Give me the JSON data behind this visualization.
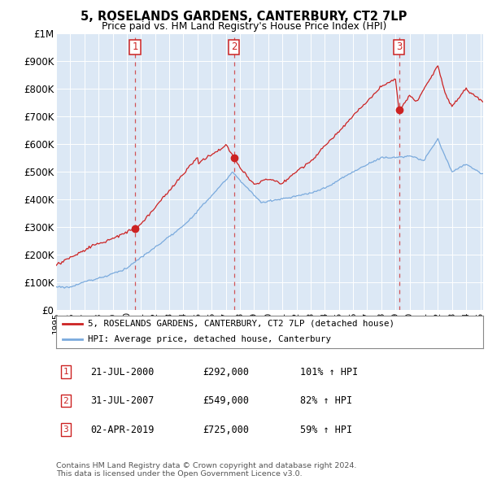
{
  "title": "5, ROSELANDS GARDENS, CANTERBURY, CT2 7LP",
  "subtitle": "Price paid vs. HM Land Registry's House Price Index (HPI)",
  "yticks": [
    0,
    100000,
    200000,
    300000,
    400000,
    500000,
    600000,
    700000,
    800000,
    900000,
    1000000
  ],
  "ytick_labels": [
    "£0",
    "£100K",
    "£200K",
    "£300K",
    "£400K",
    "£500K",
    "£600K",
    "£700K",
    "£800K",
    "£900K",
    "£1M"
  ],
  "hpi_color": "#7aaadd",
  "price_color": "#cc2222",
  "sale_prices": [
    292000,
    549000,
    725000
  ],
  "sale_pct": [
    "101%",
    "82%",
    "59%"
  ],
  "sale_date_strs": [
    "21-JUL-2000",
    "31-JUL-2007",
    "02-APR-2019"
  ],
  "sale_price_strs": [
    "£292,000",
    "£549,000",
    "£725,000"
  ],
  "legend_line1": "5, ROSELANDS GARDENS, CANTERBURY, CT2 7LP (detached house)",
  "legend_line2": "HPI: Average price, detached house, Canterbury",
  "footnote": "Contains HM Land Registry data © Crown copyright and database right 2024.\nThis data is licensed under the Open Government Licence v3.0.",
  "plot_bg_color": "#dce8f5",
  "fig_bg_color": "#ffffff",
  "grid_color": "#ffffff",
  "ylim": [
    0,
    1000000
  ],
  "xlim_start": 1995.0,
  "xlim_end": 2025.2
}
